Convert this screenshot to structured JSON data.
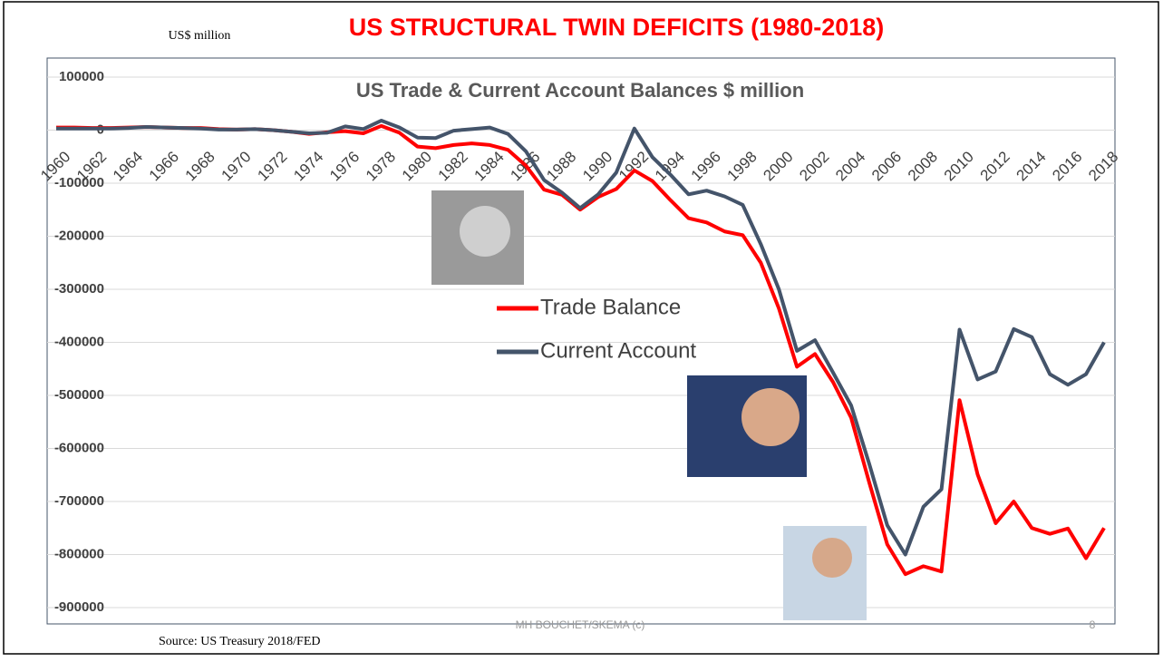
{
  "title": "US STRUCTURAL TWIN DEFICITS (1980-2018)",
  "unit_note": "US$ million",
  "source": "Source: US Treasury 2018/FED",
  "footer": "MH BOUCHET/SKEMA (c)",
  "page_number": "8",
  "chart_data": {
    "type": "line",
    "title": "US Trade & Current Account Balances $ million",
    "x": [
      1960,
      1961,
      1962,
      1963,
      1964,
      1965,
      1966,
      1967,
      1968,
      1969,
      1970,
      1971,
      1972,
      1973,
      1974,
      1975,
      1976,
      1977,
      1978,
      1979,
      1980,
      1981,
      1982,
      1983,
      1984,
      1985,
      1986,
      1987,
      1988,
      1989,
      1990,
      1991,
      1992,
      1993,
      1994,
      1995,
      1996,
      1997,
      1998,
      1999,
      2000,
      2001,
      2002,
      2003,
      2004,
      2005,
      2006,
      2007,
      2008,
      2009,
      2010,
      2011,
      2012,
      2013,
      2014,
      2015,
      2016,
      2017,
      2018
    ],
    "series": [
      {
        "name": "Trade Balance",
        "color": "#ff0000",
        "values": [
          5000,
          5000,
          4000,
          4000,
          5000,
          6000,
          5000,
          4000,
          4000,
          2000,
          1000,
          2000,
          0,
          -3000,
          -7000,
          -4000,
          -2000,
          -6000,
          8000,
          -5000,
          -31000,
          -34000,
          -28000,
          -25000,
          -28000,
          -37000,
          -67000,
          -112000,
          -122000,
          -150000,
          -126000,
          -111000,
          -76000,
          -96000,
          -132000,
          -166000,
          -174000,
          -191000,
          -198000,
          -250000,
          -336000,
          -446000,
          -422000,
          -475000,
          -542000,
          -664000,
          -781000,
          -837000,
          -822000,
          -832000,
          -509000,
          -649000,
          -741000,
          -700000,
          -750000,
          -761000,
          -751000,
          -807000,
          -750000
        ]
      },
      {
        "name": "Current Account",
        "color": "#44546a",
        "values": [
          3000,
          3000,
          3000,
          3000,
          4000,
          6000,
          5000,
          4000,
          3000,
          1000,
          1000,
          2000,
          0,
          -3000,
          -6000,
          -5000,
          7000,
          2000,
          18000,
          5000,
          -14000,
          -15000,
          -1000,
          2000,
          5000,
          -7000,
          -40000,
          -94000,
          -118000,
          -147000,
          -121000,
          -80000,
          3000,
          -51000,
          -84000,
          -121000,
          -114000,
          -125000,
          -141000,
          -215000,
          -300000,
          -416000,
          -396000,
          -457000,
          -519000,
          -629000,
          -745000,
          -800000,
          -710000,
          -677000,
          -376000,
          -470000,
          -455000,
          -375000,
          -390000,
          -460000,
          -480000,
          -460000,
          -400000
        ]
      }
    ],
    "xlim": [
      1960,
      2018
    ],
    "xticks": [
      1960,
      1962,
      1964,
      1966,
      1968,
      1970,
      1972,
      1974,
      1976,
      1978,
      1980,
      1982,
      1984,
      1986,
      1988,
      1990,
      1992,
      1994,
      1996,
      1998,
      2000,
      2002,
      2004,
      2006,
      2008,
      2010,
      2012,
      2014,
      2016,
      2018
    ],
    "ylim": [
      -900000,
      100000
    ],
    "yticks": [
      100000,
      0,
      -100000,
      -200000,
      -300000,
      -400000,
      -500000,
      -600000,
      -700000,
      -800000,
      -900000
    ],
    "grid": true
  }
}
